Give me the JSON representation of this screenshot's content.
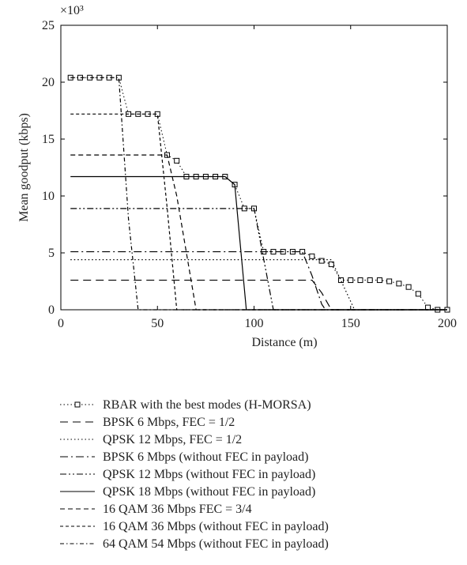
{
  "chart_data": {
    "type": "line",
    "y_axis_label": "Mean goodput (kbps)",
    "x_axis_label": "Distance (m)",
    "y_multiplier": "×10³",
    "xlim": [
      0,
      200
    ],
    "xticks": [
      0,
      50,
      100,
      150,
      200
    ],
    "ylim": [
      0,
      25
    ],
    "yticks": [
      0,
      5,
      10,
      15,
      20,
      25
    ],
    "series": [
      {
        "name": "RBAR with the best modes (H-MORSA)",
        "color": "#000000",
        "dash": "1.5,3",
        "marker": "square",
        "x": [
          5,
          10,
          15,
          20,
          25,
          30,
          35,
          40,
          45,
          50,
          55,
          60,
          65,
          70,
          75,
          80,
          85,
          90,
          95,
          100,
          105,
          110,
          115,
          120,
          125,
          130,
          135,
          140,
          145,
          150,
          155,
          160,
          165,
          170,
          175,
          180,
          185,
          190,
          195,
          200
        ],
        "values": [
          20.4,
          20.4,
          20.4,
          20.4,
          20.4,
          20.4,
          17.2,
          17.2,
          17.2,
          17.2,
          13.6,
          13.1,
          11.7,
          11.7,
          11.7,
          11.7,
          11.7,
          11.0,
          8.9,
          8.9,
          5.1,
          5.1,
          5.1,
          5.1,
          5.1,
          4.7,
          4.3,
          4.0,
          2.6,
          2.6,
          2.6,
          2.6,
          2.6,
          2.5,
          2.3,
          2.0,
          1.4,
          0.2,
          0,
          0
        ]
      },
      {
        "name": "BPSK 6 Mbps, FEC = 1/2",
        "color": "#000000",
        "dash": "10,6",
        "x": [
          5,
          130,
          135,
          140,
          200
        ],
        "values": [
          2.6,
          2.6,
          1.5,
          0,
          0
        ]
      },
      {
        "name": "QPSK 12 Mbps, FEC = 1/2",
        "color": "#000000",
        "dash": "1.5,3",
        "x": [
          5,
          140,
          152,
          200
        ],
        "values": [
          4.4,
          4.4,
          0,
          0
        ]
      },
      {
        "name": "BPSK 6 Mbps (without FEC in payload)",
        "color": "#000000",
        "dash": "10,4,2,4",
        "x": [
          5,
          125,
          130,
          135,
          137,
          200
        ],
        "values": [
          5.1,
          5.1,
          3,
          0.5,
          0,
          0
        ]
      },
      {
        "name": "QPSK 12 Mbps (without FEC in payload)",
        "color": "#000000",
        "dash": "8,3,2,3,2,3",
        "x": [
          5,
          100,
          110,
          200
        ],
        "values": [
          8.9,
          8.9,
          0,
          0
        ]
      },
      {
        "name": "QPSK 18 Mbps (without FEC in payload)",
        "color": "#000000",
        "dash": "none",
        "x": [
          5,
          85,
          90,
          96,
          200
        ],
        "values": [
          11.7,
          11.7,
          11.0,
          0,
          0
        ]
      },
      {
        "name": "16 QAM 36 Mbps FEC = 3/4",
        "color": "#000000",
        "dash": "6,4",
        "x": [
          5,
          55,
          60,
          70,
          200
        ],
        "values": [
          13.6,
          13.6,
          10,
          0,
          0
        ]
      },
      {
        "name": "16 QAM 36 Mbps (without FEC in payload)",
        "color": "#000000",
        "dash": "4,3",
        "x": [
          5,
          50,
          55,
          60,
          200
        ],
        "values": [
          17.2,
          17.2,
          9,
          0,
          0
        ]
      },
      {
        "name": "64 QAM 54 Mbps (without FEC in payload)",
        "color": "#000000",
        "dash": "5,3,1.5,3",
        "x": [
          5,
          30,
          35,
          40,
          200
        ],
        "values": [
          20.4,
          20.4,
          8,
          0,
          0
        ]
      }
    ]
  }
}
